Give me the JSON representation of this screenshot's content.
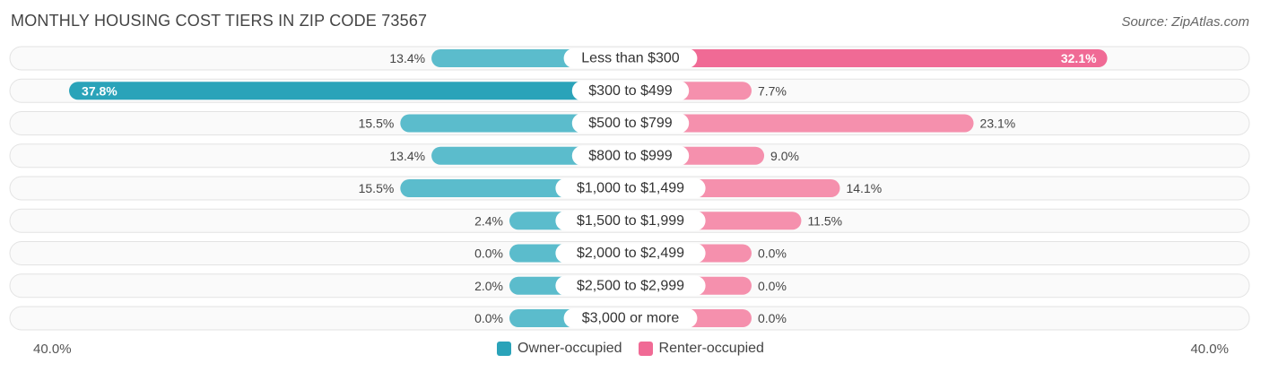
{
  "title": "MONTHLY HOUSING COST TIERS IN ZIP CODE 73567",
  "source": "Source: ZipAtlas.com",
  "colors": {
    "owner": "#5bbccc",
    "owner_strong": "#2aa3b9",
    "renter": "#f590ad",
    "renter_strong": "#f06a95",
    "row_bg": "#efefef"
  },
  "legend": {
    "owner_label": "Owner-occupied",
    "renter_label": "Renter-occupied"
  },
  "axis": {
    "left_label": "40.0%",
    "right_label": "40.0%"
  },
  "chart_data": {
    "type": "bar",
    "orientation": "horizontal-diverging",
    "title": "MONTHLY HOUSING COST TIERS IN ZIP CODE 73567",
    "categories": [
      "Less than $300",
      "$300 to $499",
      "$500 to $799",
      "$800 to $999",
      "$1,000 to $1,499",
      "$1,500 to $1,999",
      "$2,000 to $2,499",
      "$2,500 to $2,999",
      "$3,000 or more"
    ],
    "series": [
      {
        "name": "Owner-occupied",
        "values": [
          13.4,
          37.8,
          15.5,
          13.4,
          15.5,
          2.4,
          0.0,
          2.0,
          0.0
        ],
        "labels": [
          "13.4%",
          "37.8%",
          "15.5%",
          "13.4%",
          "15.5%",
          "2.4%",
          "0.0%",
          "2.0%",
          "0.0%"
        ]
      },
      {
        "name": "Renter-occupied",
        "values": [
          32.1,
          7.7,
          23.1,
          9.0,
          14.1,
          11.5,
          0.0,
          0.0,
          0.0
        ],
        "labels": [
          "32.1%",
          "7.7%",
          "23.1%",
          "9.0%",
          "14.1%",
          "11.5%",
          "0.0%",
          "0.0%",
          "0.0%"
        ]
      }
    ],
    "xlim": [
      -40,
      40
    ],
    "legend_position": "bottom-center"
  }
}
